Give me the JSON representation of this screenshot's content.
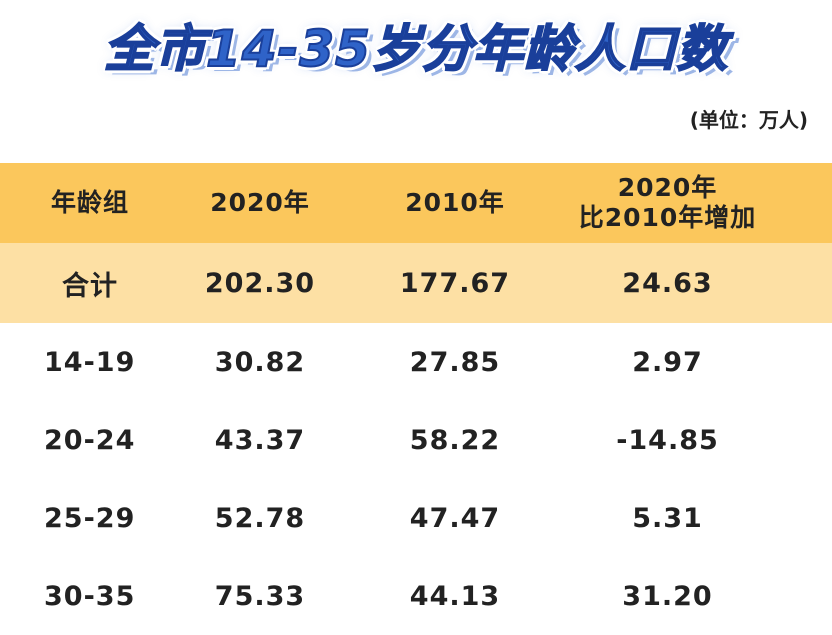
{
  "title": "全市14-35岁分年龄人口数",
  "unit": "(单位：万人)",
  "table": {
    "headers": {
      "age_group": "年龄组",
      "y2020": "2020年",
      "y2010": "2010年",
      "increase_line1": "2020年",
      "increase_line2": "比2010年增加"
    },
    "total": {
      "label": "合计",
      "y2020": "202.30",
      "y2010": "177.67",
      "increase": "24.63"
    },
    "rows": [
      {
        "age": "14-19",
        "y2020": "30.82",
        "y2010": "27.85",
        "increase": "2.97"
      },
      {
        "age": "20-24",
        "y2020": "43.37",
        "y2010": "58.22",
        "increase": "-14.85"
      },
      {
        "age": "25-29",
        "y2020": "52.78",
        "y2010": "47.47",
        "increase": "5.31"
      },
      {
        "age": "30-35",
        "y2020": "75.33",
        "y2010": "44.13",
        "increase": "31.20"
      }
    ]
  }
}
